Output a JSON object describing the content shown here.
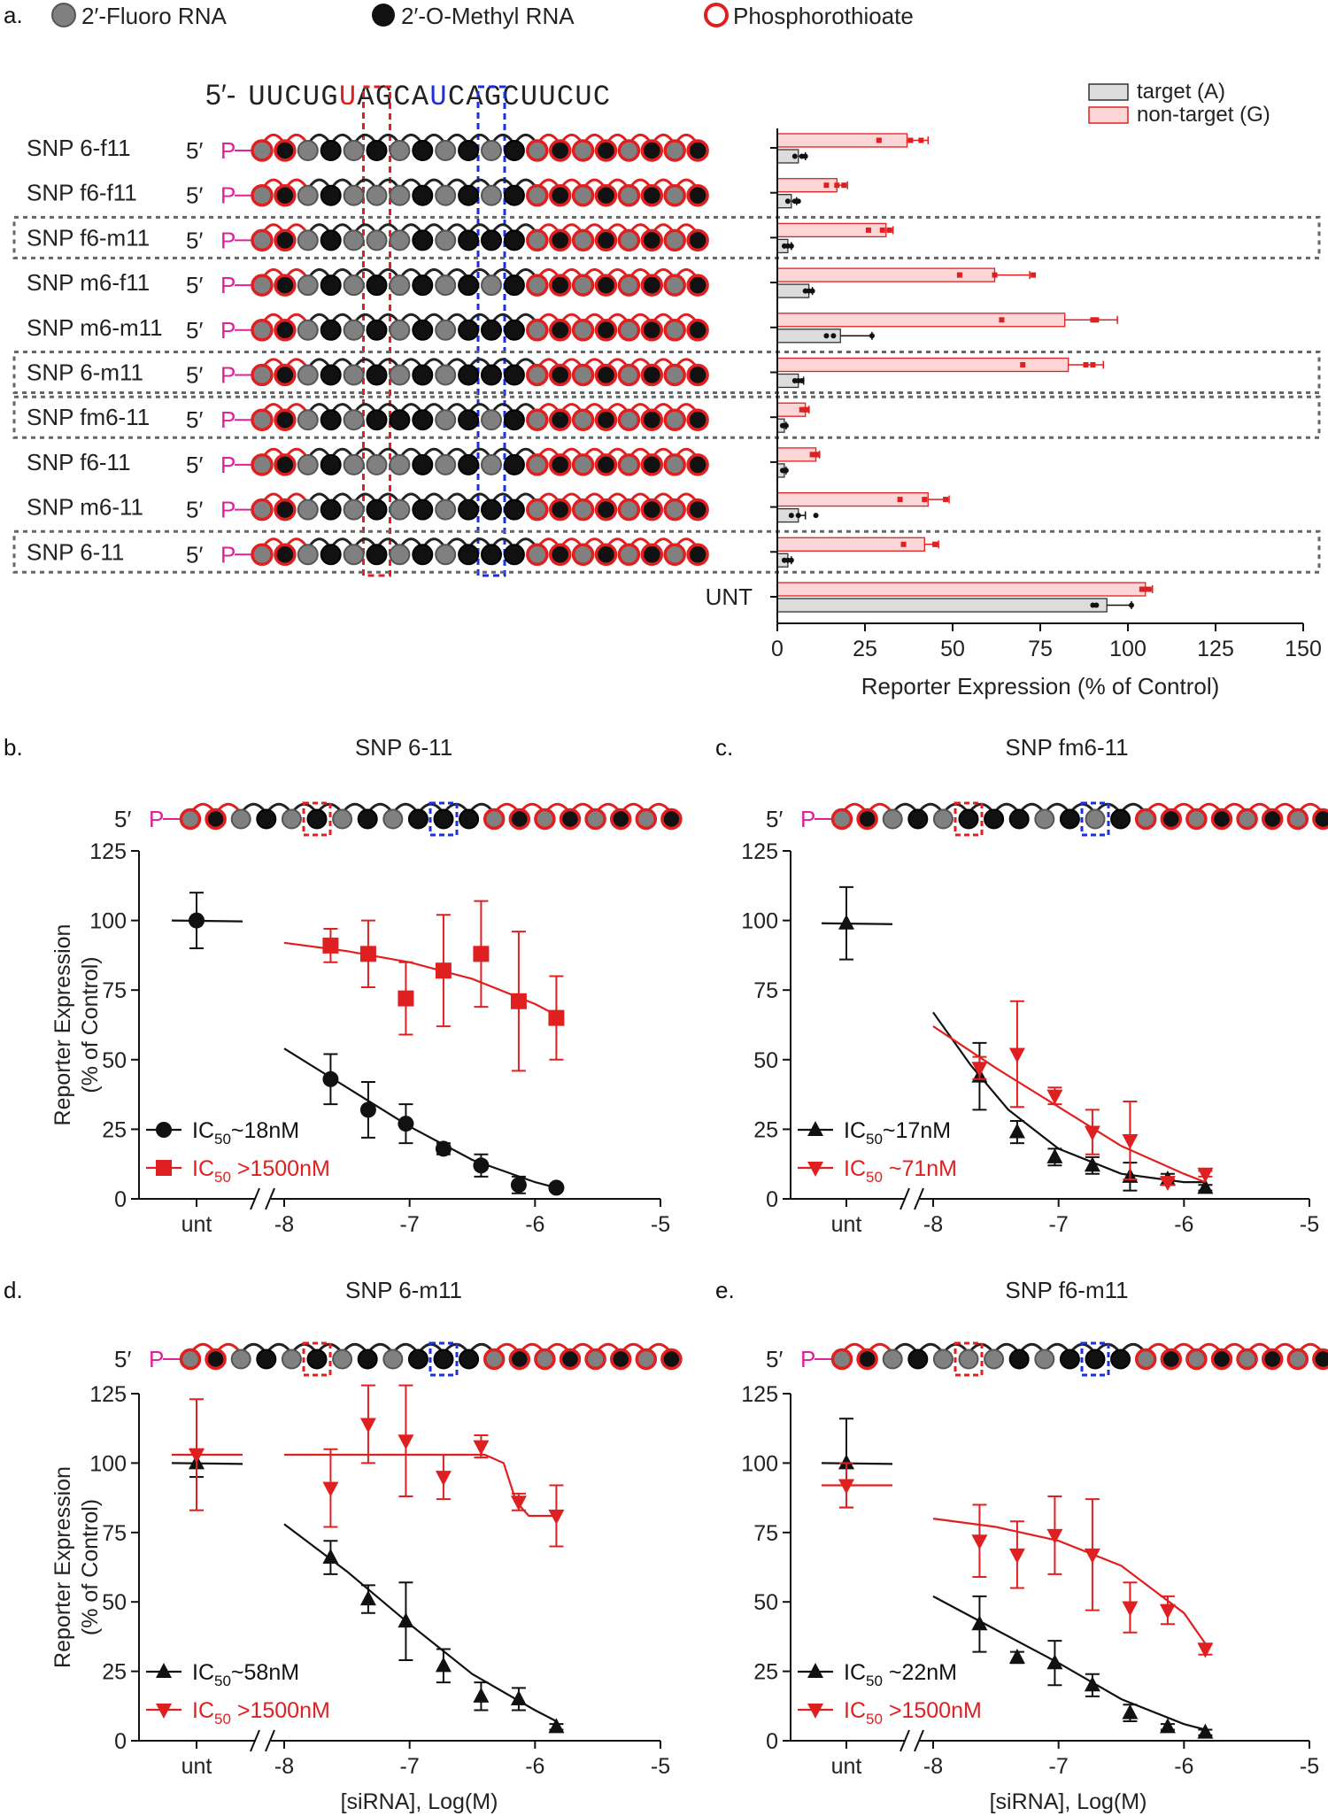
{
  "panel_labels": [
    "a.",
    "b.",
    "c.",
    "d.",
    "e."
  ],
  "legend_mod": {
    "fluoro": "2′-Fluoro RNA",
    "methyl": "2′-O-Methyl RNA",
    "pt": "Phosphorothioate"
  },
  "sequence": {
    "prefix": "5′-",
    "bases": "UUCUGUAGCAUCAGCUUCUC"
  },
  "five_prime": "5′",
  "p_label": "P",
  "colors": {
    "red": "#e02020",
    "blue": "#1a2fe0",
    "black": "#111111",
    "grey": "#808080",
    "magenta": "#e0209a",
    "bar_target": "#dcdcdc",
    "bar_nontarget": "#fcd6d6"
  },
  "patterns": {
    "SNP 6-f11": "GMGMGMGMGMGMGMGMGMGM",
    "SNP f6-f11": "GMGMGGGMGMGMGMGMGMGM",
    "SNP f6-m11": "GMGMGGGMGMMMGMGMGMGM",
    "SNP m6-f11": "GMGMGMGMGMGMGMGMGMGM",
    "SNP m6-m11": "GMGMGMGMGMMMGMGMGMGM",
    "SNP 6-m11": "GMGMGMGMGMMMGMGMGMGM",
    "SNP fm6-11": "GMGMGMMMGMGMGMGMGMGM",
    "SNP f6-11": "GMGMGGGMGMGMGMGMGMGM",
    "SNP m6-11": "GMGMGMGMGMMMGMGMGMGM",
    "SNP 6-11": "GMGMGMGMGMMMGMGMGMGM"
  },
  "chart_data": [
    {
      "id": "a",
      "type": "bar",
      "orientation": "horizontal",
      "categories": [
        "SNP 6-f11",
        "SNP f6-f11",
        "SNP f6-m11",
        "SNP m6-f11",
        "SNP m6-m11",
        "SNP 6-m11",
        "SNP fm6-11",
        "SNP f6-11",
        "SNP m6-11",
        "SNP 6-11",
        "UNT"
      ],
      "boxed": [
        "SNP f6-m11",
        "SNP 6-m11",
        "SNP fm6-11",
        "SNP 6-11"
      ],
      "series": [
        {
          "name": "target (A)",
          "values": [
            6,
            4,
            3,
            9,
            18,
            6,
            2,
            2,
            6,
            3,
            94
          ],
          "err": [
            2,
            1.5,
            1,
            1,
            9,
            1.5,
            0.5,
            0.5,
            2,
            1,
            7
          ],
          "points": [
            [
              5,
              7,
              8
            ],
            [
              3,
              5,
              6
            ],
            [
              2,
              3,
              4
            ],
            [
              8,
              9,
              10
            ],
            [
              14,
              16,
              27
            ],
            [
              5,
              6,
              7
            ],
            [
              1.5,
              2,
              2.5
            ],
            [
              1.5,
              2,
              2.5
            ],
            [
              4,
              6,
              11
            ],
            [
              2,
              3,
              4
            ],
            [
              90,
              91,
              101
            ]
          ]
        },
        {
          "name": "non-target (G)",
          "values": [
            37,
            17,
            31,
            62,
            82,
            83,
            8,
            11,
            43,
            42,
            105
          ],
          "err": [
            6,
            3,
            2,
            10,
            15,
            10,
            1,
            1,
            6,
            4,
            2
          ],
          "points": [
            [
              29,
              38,
              41
            ],
            [
              14,
              17,
              19
            ],
            [
              26,
              30,
              32
            ],
            [
              52,
              62,
              73
            ],
            [
              64,
              90,
              91
            ],
            [
              70,
              88,
              90
            ],
            [
              7,
              8,
              8.5
            ],
            [
              10,
              11,
              11.5
            ],
            [
              35,
              42,
              48
            ],
            [
              36,
              45,
              45
            ],
            [
              104,
              105,
              106
            ]
          ]
        }
      ],
      "xlabel": "Reporter Expression (% of Control)",
      "xlim": [
        0,
        150
      ],
      "xticks": [
        "0",
        "25",
        "50",
        "75",
        "100",
        "125",
        "150"
      ]
    },
    {
      "id": "b",
      "type": "line",
      "title": "SNP 6-11",
      "ylabel": "Reporter Expression\n(% of Control)",
      "xlabel": "",
      "ylim": [
        0,
        125
      ],
      "xlim": [
        -8,
        -5
      ],
      "yticks": [
        "0",
        "25",
        "50",
        "75",
        "100",
        "125"
      ],
      "xticks": [
        "-8",
        "-7",
        "-6",
        "-5"
      ],
      "unt_label": "unt",
      "series": [
        {
          "name": "IC50~18nM",
          "sub_pre": "IC",
          "sub": "50",
          "sub_post": "~18nM",
          "color": "black",
          "marker": "circle",
          "unt": 100,
          "unt_err": 10,
          "x": [
            -7.63,
            -7.33,
            -7.03,
            -6.73,
            -6.43,
            -6.13,
            -5.83
          ],
          "y": [
            43,
            32,
            27,
            18,
            12,
            5,
            4
          ],
          "err": [
            9,
            10,
            7,
            2,
            4,
            3,
            1
          ],
          "curve": [
            [
              -8,
              54
            ],
            [
              -7.5,
              40
            ],
            [
              -7,
              26
            ],
            [
              -6.5,
              14
            ],
            [
              -6,
              6
            ],
            [
              -5.83,
              4
            ]
          ]
        },
        {
          "name": "IC50 >1500nM",
          "sub_pre": "IC",
          "sub": "50",
          "sub_post": " >1500nM",
          "color": "red",
          "marker": "square",
          "unt": null,
          "unt_err": null,
          "x": [
            -7.63,
            -7.33,
            -7.03,
            -6.73,
            -6.43,
            -6.13,
            -5.83
          ],
          "y": [
            91,
            88,
            72,
            82,
            88,
            71,
            65
          ],
          "err": [
            6,
            12,
            13,
            20,
            19,
            25,
            15
          ],
          "curve": [
            [
              -8,
              92
            ],
            [
              -7.5,
              89
            ],
            [
              -7,
              85
            ],
            [
              -6.5,
              79
            ],
            [
              -6,
              70
            ],
            [
              -5.83,
              66
            ]
          ]
        }
      ]
    },
    {
      "id": "c",
      "type": "line",
      "title": "SNP fm6-11",
      "ylabel": "",
      "xlabel": "",
      "ylim": [
        0,
        125
      ],
      "xlim": [
        -8,
        -5
      ],
      "yticks": [
        "0",
        "25",
        "50",
        "75",
        "100",
        "125"
      ],
      "xticks": [
        "-8",
        "-7",
        "-6",
        "-5"
      ],
      "unt_label": "unt",
      "series": [
        {
          "name": "IC50~17nM",
          "sub_pre": "IC",
          "sub": "50",
          "sub_post": "~17nM",
          "color": "black",
          "marker": "triangle-up",
          "unt": 99,
          "unt_err": 13,
          "x": [
            -7.63,
            -7.33,
            -7.03,
            -6.73,
            -6.43,
            -6.13,
            -5.83
          ],
          "y": [
            44,
            24,
            15,
            12,
            8,
            7,
            4
          ],
          "err": [
            12,
            4,
            3,
            3,
            5,
            2,
            1
          ],
          "curve": [
            [
              -8,
              67
            ],
            [
              -7.7,
              48
            ],
            [
              -7.4,
              32
            ],
            [
              -7,
              18
            ],
            [
              -6.5,
              9
            ],
            [
              -6,
              6
            ],
            [
              -5.83,
              6
            ]
          ]
        },
        {
          "name": "IC50 ~71nM",
          "sub_pre": "IC",
          "sub": "50",
          "sub_post": " ~71nM",
          "color": "red",
          "marker": "triangle-down",
          "unt": null,
          "unt_err": null,
          "x": [
            -7.63,
            -7.33,
            -7.03,
            -6.73,
            -6.43,
            -6.13,
            -5.83
          ],
          "y": [
            47,
            52,
            37,
            24,
            21,
            6,
            9
          ],
          "err": [
            4,
            19,
            3,
            8,
            14,
            1,
            1
          ],
          "curve": [
            [
              -8,
              62
            ],
            [
              -7.5,
              47
            ],
            [
              -7,
              33
            ],
            [
              -6.5,
              19
            ],
            [
              -6,
              9
            ],
            [
              -5.83,
              6
            ]
          ]
        }
      ]
    },
    {
      "id": "d",
      "type": "line",
      "title": "SNP 6-m11",
      "ylabel": "Reporter Expression\n(% of Control)",
      "xlabel": "[siRNA], Log(M)",
      "ylim": [
        0,
        125
      ],
      "xlim": [
        -8,
        -5
      ],
      "yticks": [
        "0",
        "25",
        "50",
        "75",
        "100",
        "125"
      ],
      "xticks": [
        "-8",
        "-7",
        "-6",
        "-5"
      ],
      "unt_label": "unt",
      "series": [
        {
          "name": "IC50~58nM",
          "sub_pre": "IC",
          "sub": "50",
          "sub_post": "~58nM",
          "color": "black",
          "marker": "triangle-up",
          "unt": 100,
          "unt_err": 5,
          "x": [
            -7.63,
            -7.33,
            -7.03,
            -6.73,
            -6.43,
            -6.13,
            -5.83
          ],
          "y": [
            66,
            51,
            43,
            27,
            16,
            15,
            5
          ],
          "err": [
            6,
            5,
            14,
            6,
            5,
            4,
            1
          ],
          "curve": [
            [
              -8,
              78
            ],
            [
              -7.5,
              61
            ],
            [
              -7,
              42
            ],
            [
              -6.5,
              24
            ],
            [
              -6,
              11
            ],
            [
              -5.83,
              7
            ]
          ]
        },
        {
          "name": "IC50 >1500nM",
          "sub_pre": "IC",
          "sub": "50",
          "sub_post": " >1500nM",
          "color": "red",
          "marker": "triangle-down",
          "unt": 103,
          "unt_err": 20,
          "x": [
            -7.63,
            -7.33,
            -7.03,
            -6.73,
            -6.43,
            -6.13,
            -5.83
          ],
          "y": [
            91,
            114,
            108,
            95,
            106,
            86,
            81
          ],
          "err": [
            14,
            14,
            20,
            8,
            4,
            3,
            11
          ],
          "curve": [
            [
              -8,
              103
            ],
            [
              -6.4,
              103
            ],
            [
              -6.25,
              100
            ],
            [
              -6.15,
              86
            ],
            [
              -6.05,
              81
            ],
            [
              -5.83,
              81
            ]
          ]
        }
      ]
    },
    {
      "id": "e",
      "type": "line",
      "title": "SNP f6-m11",
      "ylabel": "",
      "xlabel": "[siRNA], Log(M)",
      "ylim": [
        0,
        125
      ],
      "xlim": [
        -8,
        -5
      ],
      "yticks": [
        "0",
        "25",
        "50",
        "75",
        "100",
        "125"
      ],
      "xticks": [
        "-8",
        "-7",
        "-6",
        "-5"
      ],
      "unt_label": "unt",
      "series": [
        {
          "name": "IC50 ~22nM",
          "sub_pre": "IC",
          "sub": "50",
          "sub_post": " ~22nM",
          "color": "black",
          "marker": "triangle-up",
          "unt": 100,
          "unt_err": 16,
          "x": [
            -7.63,
            -7.33,
            -7.03,
            -6.73,
            -6.43,
            -6.13,
            -5.83
          ],
          "y": [
            42,
            30,
            28,
            20,
            10,
            5,
            3
          ],
          "err": [
            10,
            2,
            8,
            4,
            3,
            1,
            1
          ],
          "curve": [
            [
              -8,
              52
            ],
            [
              -7.5,
              40
            ],
            [
              -7,
              28
            ],
            [
              -6.5,
              15
            ],
            [
              -6,
              6
            ],
            [
              -5.83,
              4
            ]
          ]
        },
        {
          "name": "IC50 >1500nM",
          "sub_pre": "IC",
          "sub": "50",
          "sub_post": " >1500nM",
          "color": "red",
          "marker": "triangle-down",
          "unt": 92,
          "unt_err": 8,
          "x": [
            -7.63,
            -7.33,
            -7.03,
            -6.73,
            -6.43,
            -6.13,
            -5.83
          ],
          "y": [
            72,
            67,
            74,
            67,
            48,
            47,
            33
          ],
          "err": [
            13,
            12,
            14,
            20,
            9,
            5,
            2
          ],
          "curve": [
            [
              -8,
              80
            ],
            [
              -7.5,
              77
            ],
            [
              -7,
              72
            ],
            [
              -6.5,
              63
            ],
            [
              -6,
              46
            ],
            [
              -5.83,
              35
            ]
          ]
        }
      ]
    }
  ]
}
